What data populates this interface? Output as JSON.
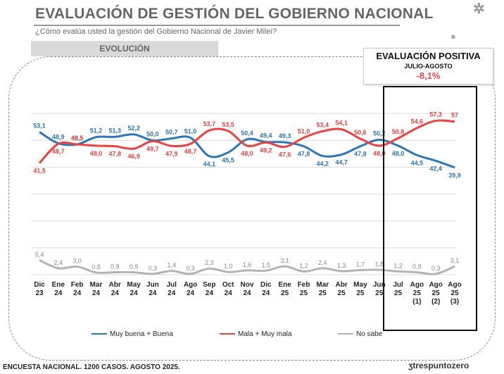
{
  "header": {
    "title": "EVALUACIÓN DE GESTIÓN DEL GOBIERNO NACIONAL",
    "subtitle": "¿Cómo evalúa usted la gestión del Gobierno Nacional de Javier Milei?",
    "tab_label": "EVOLUCIÓN"
  },
  "eval_box": {
    "title": "EVALUACIÓN POSITIVA",
    "period": "JULIO-AGOSTO",
    "value": "-8,1%"
  },
  "footer": {
    "text": "ENCUESTA NACIONAL. 1200 CASOS. AGOSTO 2025.",
    "logo": "trespuntozero"
  },
  "colors": {
    "positive": "#2e75b6",
    "negative": "#e84343",
    "nosabe": "#b3b3b3",
    "grid": "#d9d9d9"
  },
  "chart_data": {
    "type": "line",
    "categories": [
      [
        "Dic",
        "23"
      ],
      [
        "Ene",
        "24"
      ],
      [
        "Feb",
        "24"
      ],
      [
        "Mar",
        "24"
      ],
      [
        "Abr",
        "24"
      ],
      [
        "May",
        "24"
      ],
      [
        "Jun",
        "24"
      ],
      [
        "Jul",
        "24"
      ],
      [
        "Ago",
        "24"
      ],
      [
        "Sep",
        "24"
      ],
      [
        "Oct",
        "24"
      ],
      [
        "Nov",
        "24"
      ],
      [
        "Dic",
        "24"
      ],
      [
        "Ene",
        "25"
      ],
      [
        "Feb",
        "25"
      ],
      [
        "Mar",
        "25"
      ],
      [
        "Abr",
        "25"
      ],
      [
        "May",
        "25"
      ],
      [
        "Jun",
        "25"
      ],
      [
        "Jul",
        "25"
      ],
      [
        "Ago",
        "25",
        "(1)"
      ],
      [
        "Ago",
        "25",
        "(2)"
      ],
      [
        "Ago",
        "25",
        "(3)"
      ]
    ],
    "series": [
      {
        "name": "Muy buena + Buena",
        "color": "#2e75b6",
        "values": [
          53.1,
          48.9,
          48.5,
          51.2,
          51.3,
          52.2,
          50.0,
          50.7,
          51.0,
          44.1,
          45.5,
          50.4,
          49.4,
          49.3,
          47.8,
          44.2,
          44.7,
          47.8,
          50.2,
          48.0,
          44.5,
          42.4,
          39.9
        ],
        "labels": [
          "53,1",
          "48,9",
          "48,5",
          "51,2",
          "51,3",
          "52,2",
          "50,0",
          "50,7",
          "51,0",
          "44,1",
          "45,5",
          "50,4",
          "49,4",
          "49,3",
          "47,8",
          "44,2",
          "44,7",
          "47,8",
          "50,2",
          "48,0",
          "44,5",
          "42,4",
          "39,9"
        ]
      },
      {
        "name": "Mala + Muy mala",
        "color": "#e84343",
        "values": [
          41.5,
          48.7,
          48.5,
          48.0,
          47.8,
          46.9,
          49.7,
          47.9,
          48.7,
          53.7,
          53.5,
          48.0,
          49.2,
          47.6,
          51.0,
          53.4,
          54.1,
          50.6,
          48.0,
          50.8,
          54.6,
          57.3,
          57
        ],
        "labels": [
          "41,5",
          "48,7",
          "48,5",
          "48,0",
          "47,8",
          "46,9",
          "49,7",
          "47,9",
          "48,7",
          "53,7",
          "53,5",
          "48,0",
          "49,2",
          "47,6",
          "51,0",
          "53,4",
          "54,1",
          "50,6",
          "48,0",
          "50,8",
          "54,6",
          "57,3",
          "57"
        ]
      },
      {
        "name": "No sabe",
        "color": "#b3b3b3",
        "values": [
          5.4,
          2.4,
          3.0,
          0.8,
          0.9,
          0.9,
          0.3,
          1.4,
          0.3,
          2.3,
          1.0,
          1.6,
          1.5,
          3.1,
          1.2,
          2.4,
          1.3,
          1.7,
          1.8,
          1.2,
          0.9,
          0.3,
          3.1
        ],
        "labels": [
          "5,4",
          "2,4",
          "3,0",
          "0,8",
          "0,9",
          "0,9",
          "0,3",
          "1,4",
          "0,3",
          "2,3",
          "1,0",
          "1,6",
          "1,5",
          "3,1",
          "1,2",
          "2,4",
          "1,3",
          "1,7",
          "1,8",
          "1,2",
          "0,9",
          "0,3",
          "3,1"
        ]
      }
    ],
    "ylim": [
      0,
      70
    ],
    "grid": true,
    "legend": "bottom"
  }
}
